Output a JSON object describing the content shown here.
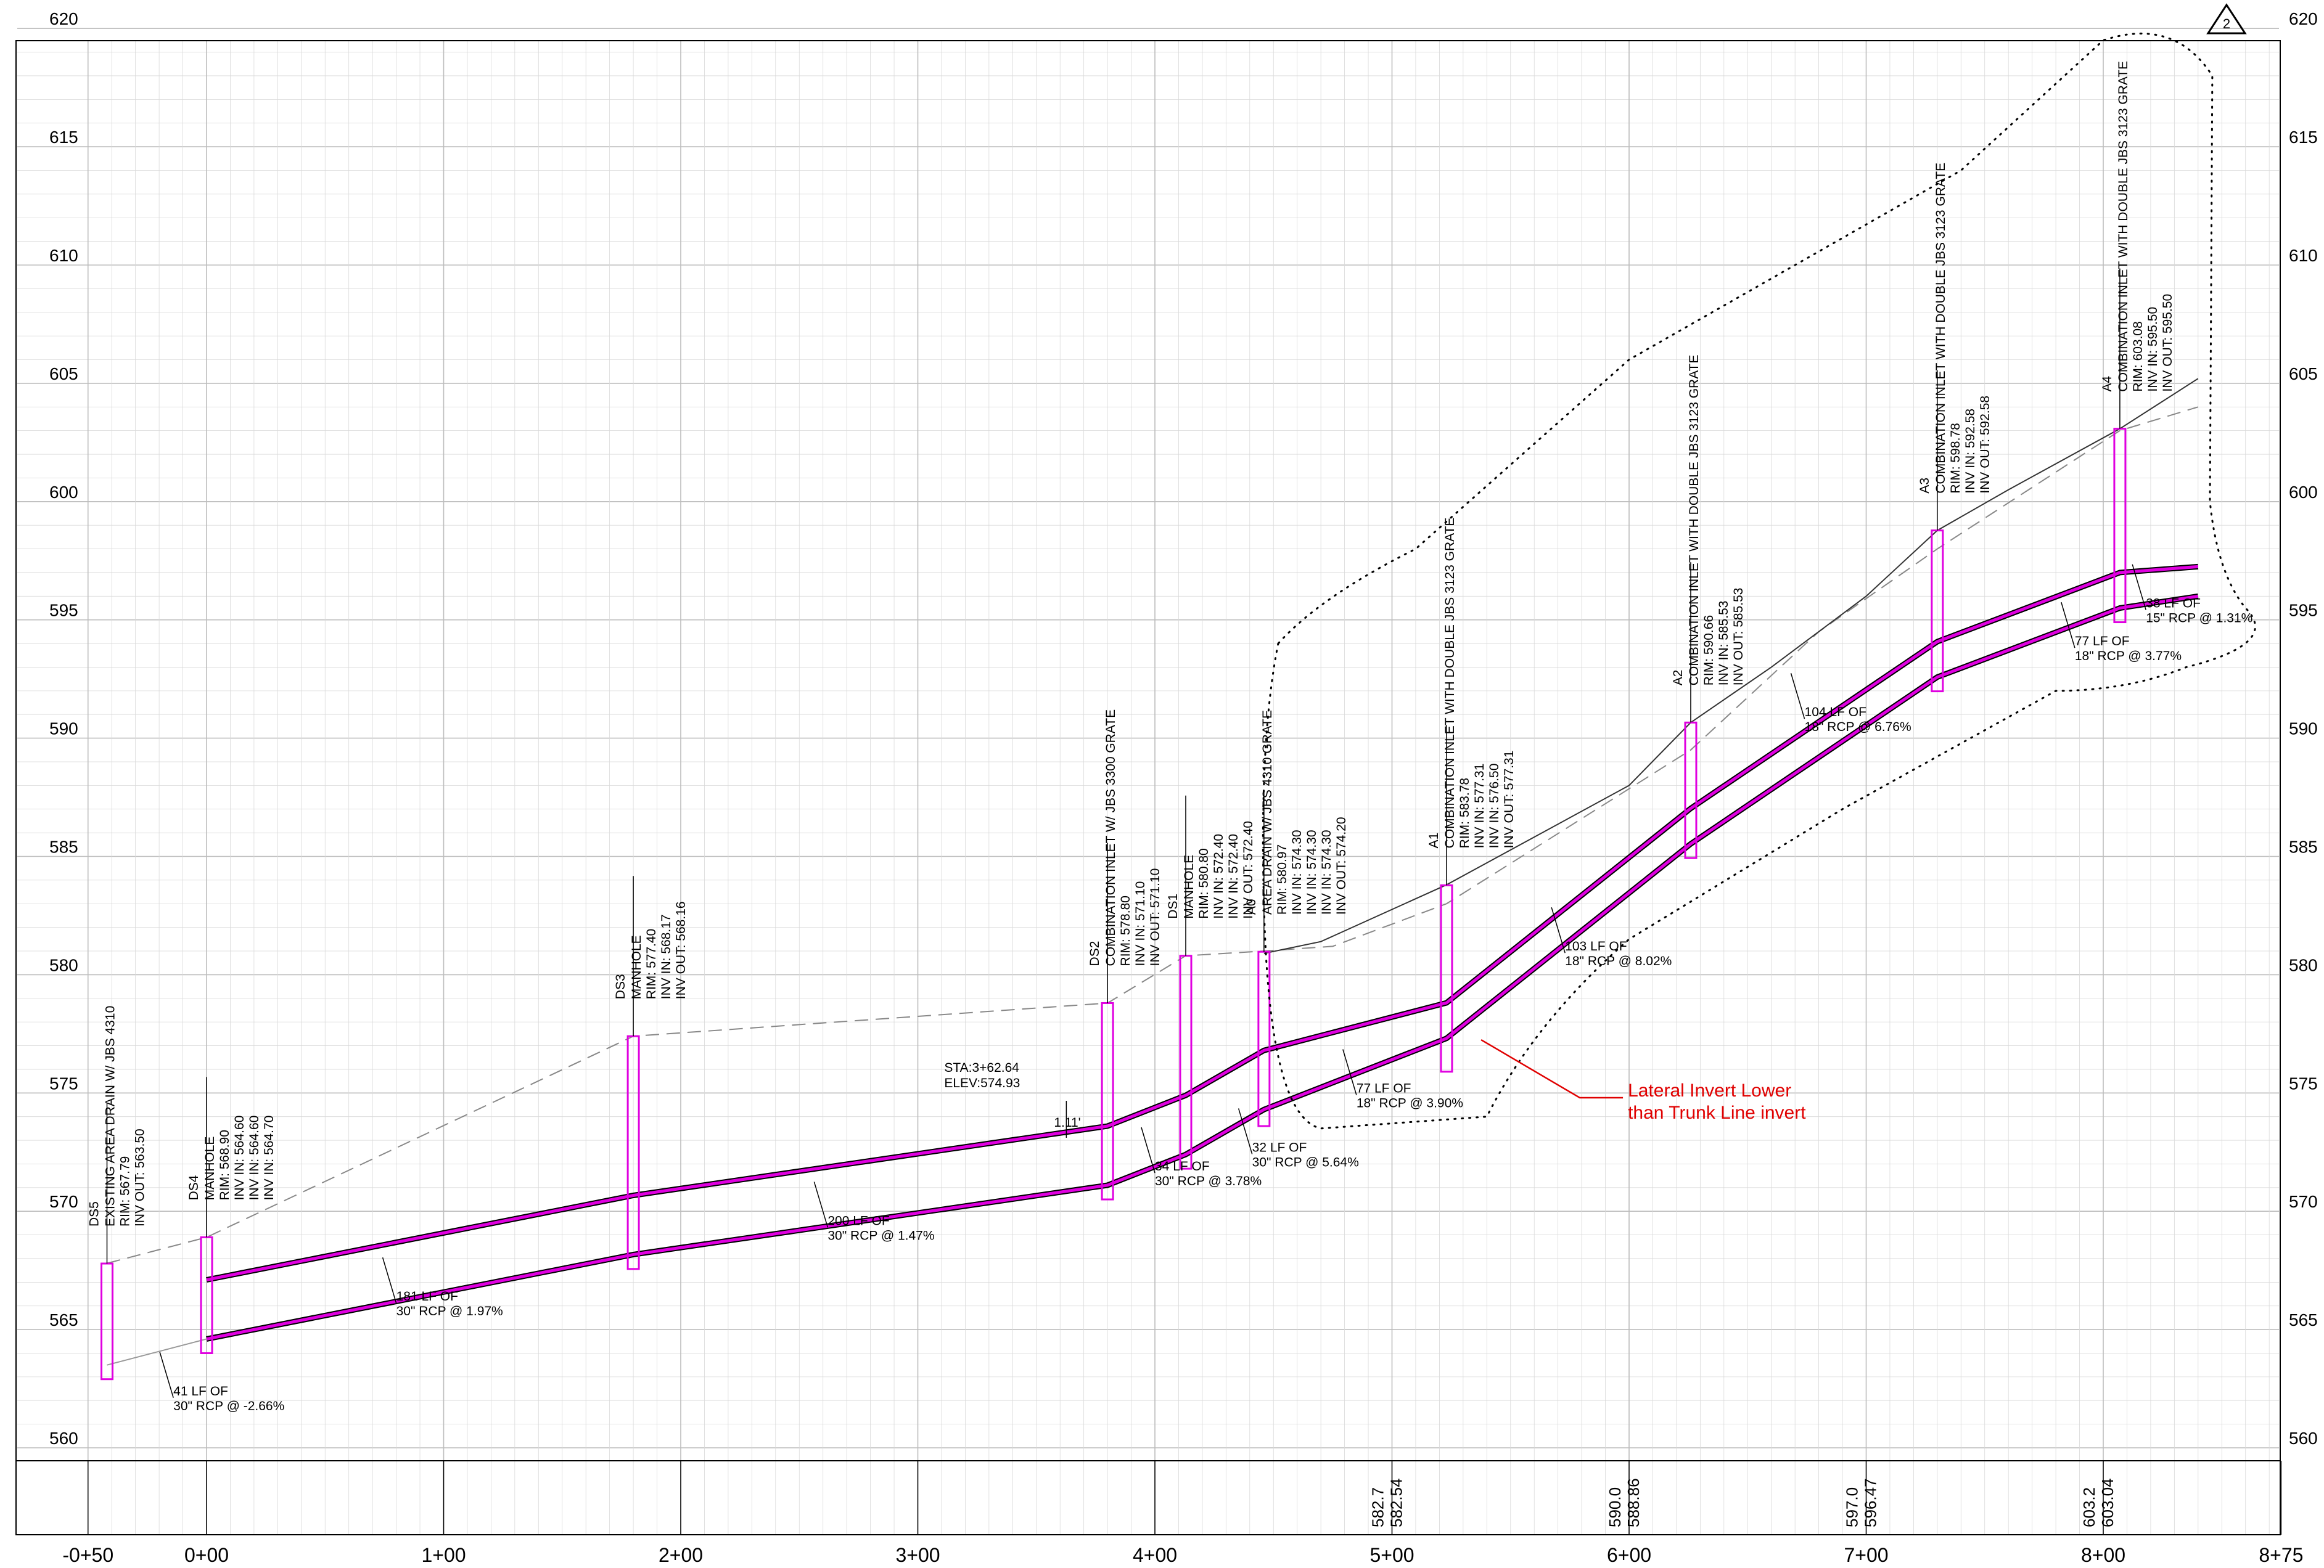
{
  "elevation_labels": [
    "620",
    "615",
    "610",
    "605",
    "600",
    "595",
    "590",
    "585",
    "580",
    "575",
    "570",
    "565",
    "560"
  ],
  "station_labels": [
    "-0+50",
    "0+00",
    "1+00",
    "2+00",
    "3+00",
    "4+00",
    "5+00",
    "6+00",
    "7+00",
    "8+00",
    "8+75"
  ],
  "revision_number": "2",
  "structures": [
    {
      "id": "DS5",
      "sta": -42,
      "top": "EXISTING AREA DRAIN W/ JBS 4310",
      "lines": [
        "RIM: 567.79",
        "INV OUT: 563.50"
      ]
    },
    {
      "id": "DS4",
      "sta": 0,
      "top": "MANHOLE",
      "lines": [
        "RIM: 568.90",
        "INV IN: 564.60",
        "INV IN: 564.60",
        "INV IN: 564.70"
      ]
    },
    {
      "id": "DS3",
      "sta": 180,
      "top": "MANHOLE",
      "lines": [
        "RIM: 577.40",
        "INV IN: 568.17",
        "INV OUT: 568.16"
      ]
    },
    {
      "id": "DS2",
      "sta": 380,
      "top": "COMBINATION INLET W/ JBS 3300 GRATE",
      "lines": [
        "RIM: 578.80",
        "INV IN: 571.10",
        "INV OUT: 571.10"
      ]
    },
    {
      "id": "DS1",
      "sta": 413,
      "top": "MANHOLE",
      "lines": [
        "RIM: 580.80",
        "INV IN: 572.40",
        "INV IN: 572.40",
        "INV OUT: 572.40"
      ]
    },
    {
      "id": "A0",
      "sta": 446,
      "top": "AREA DRAIN W/ JBS 4310 GRATE",
      "lines": [
        "RIM: 580.97",
        "INV IN: 574.30",
        "INV IN: 574.30",
        "INV IN: 574.30",
        "INV OUT: 574.20"
      ]
    },
    {
      "id": "A1",
      "sta": 523,
      "top": "COMBINATION INLET WITH DOUBLE JBS 3123 GRATE",
      "lines": [
        "RIM: 583.78",
        "INV IN: 577.31",
        "INV IN: 576.50",
        "INV OUT: 577.31"
      ]
    },
    {
      "id": "A2",
      "sta": 626,
      "top": "COMBINATION INLET WITH DOUBLE JBS 3123 GRATE",
      "lines": [
        "RIM: 590.66",
        "INV IN: 585.53",
        "INV OUT: 585.53"
      ]
    },
    {
      "id": "A3",
      "sta": 730,
      "top": "COMBINATION INLET WITH DOUBLE JBS 3123 GRATE",
      "lines": [
        "RIM: 598.78",
        "INV IN: 592.58",
        "INV OUT: 592.58"
      ]
    },
    {
      "id": "A4",
      "sta": 807,
      "top": "COMBINATION INLET WITH DOUBLE JBS 3123 GRATE",
      "lines": [
        "RIM: 603.08",
        "INV IN: 595.50",
        "INV OUT: 595.50"
      ]
    }
  ],
  "pipe_segments": [
    {
      "l1": "41 LF OF",
      "l2": "30\" RCP @ -2.66%"
    },
    {
      "l1": "181 LF OF",
      "l2": "30\" RCP @ 1.97%"
    },
    {
      "l1": "200 LF OF",
      "l2": "30\" RCP @ 1.47%"
    },
    {
      "l1": "34 LF OF",
      "l2": "30\" RCP @ 3.78%"
    },
    {
      "l1": "32 LF OF",
      "l2": "30\" RCP @ 5.64%"
    },
    {
      "l1": "77 LF OF",
      "l2": "18\" RCP @ 3.90%"
    },
    {
      "l1": "103 LF OF",
      "l2": "18\" RCP @ 8.02%"
    },
    {
      "l1": "104 LF OF",
      "l2": "18\" RCP @ 6.76%"
    },
    {
      "l1": "77 LF OF",
      "l2": "18\" RCP @ 3.77%"
    },
    {
      "l1": "38 LF OF",
      "l2": "15\" RCP @ 1.31%"
    }
  ],
  "sta_callout": {
    "l1": "STA:3+62.64",
    "l2": "ELEV:574.93",
    "clearance": "1.11'"
  },
  "annotation": {
    "l1": "Lateral Invert Lower",
    "l2": "than Trunk Line invert",
    "color": "#e00000"
  },
  "ground_values": [
    {
      "a": "582.7",
      "b": "582.54"
    },
    {
      "a": "590.0",
      "b": "588.86"
    },
    {
      "a": "597.0",
      "b": "596.47"
    },
    {
      "a": "603.2",
      "b": "603.04"
    }
  ],
  "colors": {
    "pipe": "#e000e0",
    "annotation": "#e00000",
    "grid": "#d9d9d9"
  }
}
